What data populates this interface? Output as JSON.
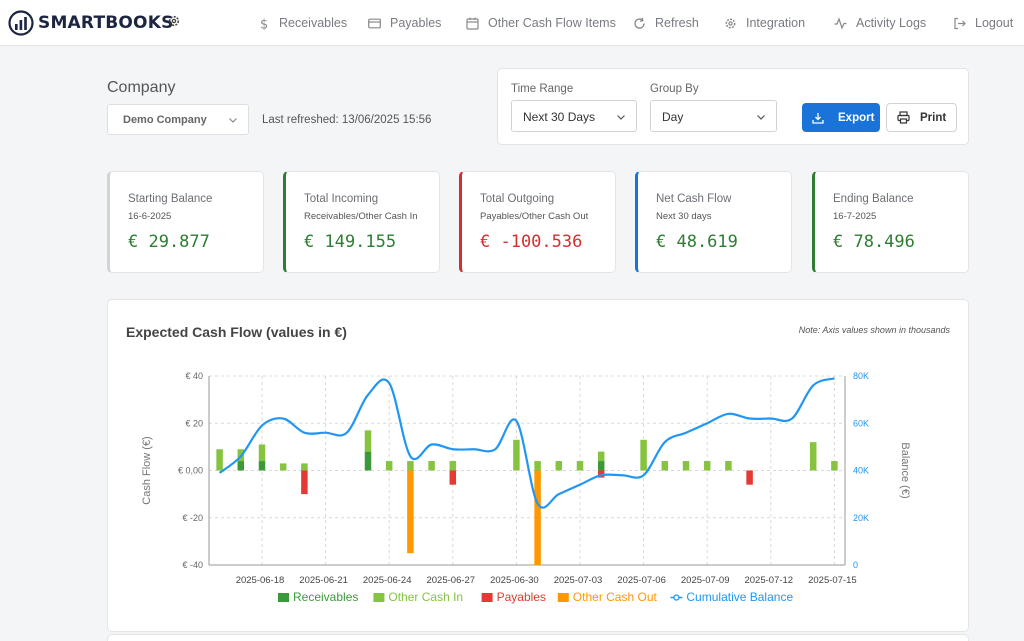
{
  "brand": {
    "name": "SMARTBOOKS"
  },
  "nav": [
    {
      "label": "Receivables",
      "icon": "dollar-icon"
    },
    {
      "label": "Payables",
      "icon": "card-icon"
    },
    {
      "label": "Other Cash Flow Items",
      "icon": "calendar-icon"
    },
    {
      "label": "Refresh",
      "icon": "refresh-icon"
    },
    {
      "label": "Integration",
      "icon": "gear-icon"
    },
    {
      "label": "Activity Logs",
      "icon": "activity-icon"
    },
    {
      "label": "Logout",
      "icon": "logout-icon"
    }
  ],
  "company": {
    "label": "Company",
    "selected": "Demo Company",
    "last_refreshed": "Last refreshed: 13/06/2025 15:56"
  },
  "filters": {
    "time_range_label": "Time Range",
    "time_range_value": "Next 30 Days",
    "group_by_label": "Group By",
    "group_by_value": "Day",
    "export_label": "Export",
    "print_label": "Print"
  },
  "kpis": [
    {
      "title": "Starting Balance",
      "sub": "16-6-2025",
      "value": "€ 29.877",
      "color": "#2e7d32",
      "border": "#d0d3d7"
    },
    {
      "title": "Total Incoming",
      "sub": "Receivables/Other Cash In",
      "value": "€ 149.155",
      "color": "#2e7d32",
      "border": "#2e7d32"
    },
    {
      "title": "Total Outgoing",
      "sub": "Payables/Other Cash Out",
      "value": "€ -100.536",
      "color": "#d32f2f",
      "border": "#d32f2f"
    },
    {
      "title": "Net Cash Flow",
      "sub": "Next 30 days",
      "value": "€ 48.619",
      "color": "#2e7d32",
      "border": "#1a73d9"
    },
    {
      "title": "Ending Balance",
      "sub": "16-7-2025",
      "value": "€ 78.496",
      "color": "#2e7d32",
      "border": "#2e7d32"
    }
  ],
  "chart": {
    "title": "Expected Cash Flow (values in €)",
    "note": "Note: Axis values shown in thousands"
  },
  "chart_data": {
    "type": "bar",
    "x": [
      "2025-06-16",
      "2025-06-17",
      "2025-06-18",
      "2025-06-19",
      "2025-06-20",
      "2025-06-21",
      "2025-06-22",
      "2025-06-23",
      "2025-06-24",
      "2025-06-25",
      "2025-06-26",
      "2025-06-27",
      "2025-06-28",
      "2025-06-29",
      "2025-06-30",
      "2025-07-01",
      "2025-07-02",
      "2025-07-03",
      "2025-07-04",
      "2025-07-05",
      "2025-07-06",
      "2025-07-07",
      "2025-07-08",
      "2025-07-09",
      "2025-07-10",
      "2025-07-11",
      "2025-07-12",
      "2025-07-13",
      "2025-07-14",
      "2025-07-15"
    ],
    "x_ticks": [
      "2025-06-18",
      "2025-06-21",
      "2025-06-24",
      "2025-06-27",
      "2025-06-30",
      "2025-07-03",
      "2025-07-06",
      "2025-07-09",
      "2025-07-12",
      "2025-07-15"
    ],
    "y_left": {
      "label": "Cash Flow (€)",
      "min": -40,
      "max": 40,
      "ticks": [
        "€ -40",
        "€ -20",
        "€ 0,00",
        "€ 20",
        "€ 40"
      ]
    },
    "y_right": {
      "label": "Balance (€)",
      "min": 0,
      "max": 80,
      "ticks": [
        "0",
        "20K",
        "40K",
        "60K",
        "80K"
      ]
    },
    "series": [
      {
        "name": "Receivables",
        "color": "#3a9a3a",
        "type": "bar",
        "values": [
          0,
          4,
          4,
          0,
          0,
          0,
          0,
          8,
          0,
          0,
          0,
          0,
          0,
          0,
          0,
          0,
          0,
          0,
          4,
          0,
          0,
          0,
          0,
          0,
          0,
          0,
          0,
          0,
          0,
          0
        ]
      },
      {
        "name": "Other Cash In",
        "color": "#86c440",
        "type": "bar",
        "values": [
          9,
          5,
          7,
          3,
          3,
          0,
          0,
          9,
          4,
          4,
          4,
          4,
          0,
          0,
          13,
          4,
          4,
          4,
          4,
          0,
          13,
          4,
          4,
          4,
          4,
          0,
          0,
          0,
          12,
          4
        ]
      },
      {
        "name": "Payables",
        "color": "#e53935",
        "type": "bar",
        "values": [
          0,
          0,
          0,
          0,
          -10,
          0,
          0,
          0,
          0,
          0,
          0,
          -6,
          0,
          0,
          0,
          0,
          0,
          0,
          -3,
          0,
          0,
          0,
          0,
          0,
          0,
          -6,
          0,
          0,
          0,
          0
        ]
      },
      {
        "name": "Other Cash Out",
        "color": "#ff9800",
        "type": "bar",
        "values": [
          0,
          0,
          0,
          0,
          0,
          0,
          0,
          0,
          0,
          -35,
          0,
          0,
          0,
          0,
          0,
          -40,
          0,
          0,
          0,
          0,
          0,
          0,
          0,
          0,
          0,
          0,
          0,
          0,
          0,
          0
        ]
      },
      {
        "name": "Cumulative Balance",
        "color": "#2196f3",
        "type": "line",
        "values": [
          39,
          46,
          59,
          62,
          56,
          56,
          56,
          72,
          77,
          46,
          51,
          49,
          49,
          49,
          61,
          26,
          30,
          34,
          38,
          38,
          38,
          52,
          56,
          60,
          64,
          62,
          62,
          62,
          76,
          79
        ]
      }
    ],
    "legend": "bottom",
    "grid": true
  }
}
